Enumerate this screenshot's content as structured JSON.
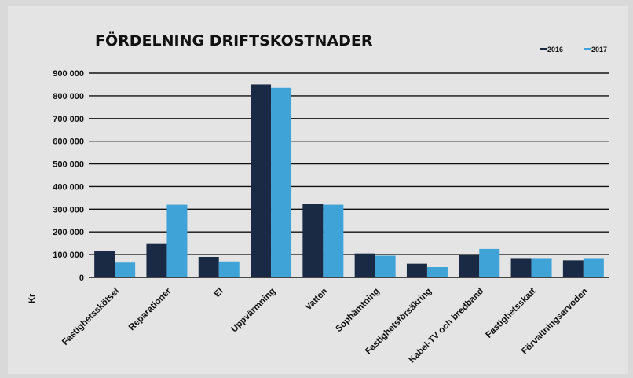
{
  "chart_data": {
    "type": "bar",
    "title": "FÖRDELNING DRIFTSKOSTNADER",
    "ylabel": "Kr",
    "xlabel": "",
    "ylim": [
      0,
      900000
    ],
    "yticks": [
      "0",
      "100 000",
      "200 000",
      "300 000",
      "400 000",
      "500 000",
      "600 000",
      "700 000",
      "800 000",
      "900 000"
    ],
    "grid": true,
    "legend_position": "top-right",
    "categories": [
      "Fastighetsskötsel",
      "Reparationer",
      "El",
      "Uppvärmning",
      "Vatten",
      "Sophämtning",
      "Fastighetsförsäkring",
      "Kabel-TV och bredband",
      "Fastighetsskatt",
      "Förvaltningsarvoden"
    ],
    "series": [
      {
        "name": "2016",
        "color": "#1b2a44",
        "values": [
          115000,
          150000,
          90000,
          850000,
          325000,
          105000,
          60000,
          100000,
          85000,
          75000
        ]
      },
      {
        "name": "2017",
        "color": "#3fa3d8",
        "values": [
          65000,
          320000,
          70000,
          835000,
          320000,
          95000,
          45000,
          125000,
          85000,
          85000
        ]
      }
    ]
  }
}
